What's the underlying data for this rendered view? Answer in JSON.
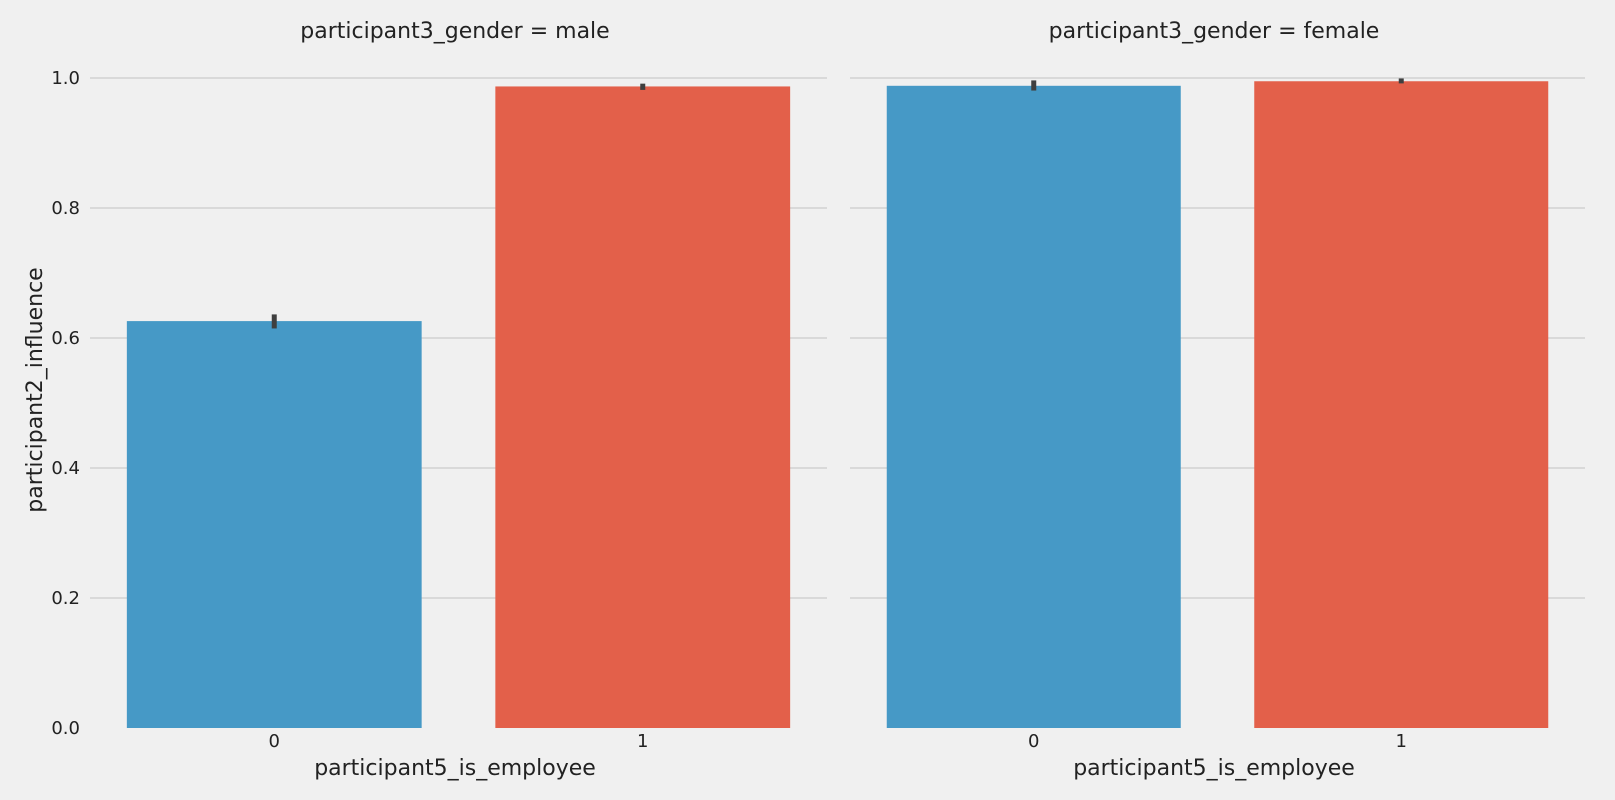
{
  "chart_data": {
    "type": "bar",
    "ylabel": "participant2_influence",
    "xlabel": "participant5_is_employee",
    "ylim": [
      0,
      1.0
    ],
    "yticks": [
      "0.0",
      "0.2",
      "0.4",
      "0.6",
      "0.8",
      "1.0"
    ],
    "categories": [
      "0",
      "1"
    ],
    "colors": [
      "#4699c6",
      "#e3604a"
    ],
    "grid": true,
    "panels": [
      {
        "title": "participant3_gender = male",
        "values": [
          0.626,
          0.987
        ],
        "errors": [
          [
            0.617,
            0.634
          ],
          [
            0.984,
            0.989
          ]
        ]
      },
      {
        "title": "participant3_gender = female",
        "values": [
          0.988,
          0.995
        ],
        "errors": [
          [
            0.983,
            0.994
          ],
          [
            0.994,
            0.997
          ]
        ]
      }
    ]
  }
}
